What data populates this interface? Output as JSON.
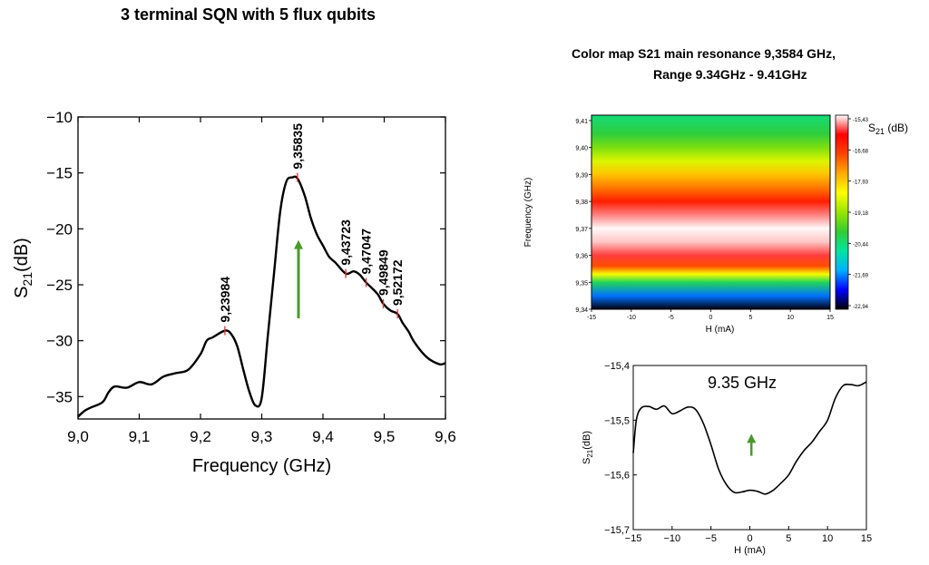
{
  "page": {
    "title": "3 terminal SQN with 5 flux qubits",
    "colormap_title_line1": "Color map S21 main resonance 9,3584 GHz,",
    "colormap_title_line2": "Range   9.34GHz - 9.41GHz"
  },
  "chart_data": [
    {
      "type": "line",
      "xlabel": "Frequency (GHz)",
      "ylabel": "S21(dB)",
      "xlim": [
        9.0,
        9.6
      ],
      "ylim": [
        -37,
        -10
      ],
      "xticks": [
        "9,0",
        "9,1",
        "9,2",
        "9,3",
        "9,4",
        "9,5",
        "9,6"
      ],
      "yticks": [
        "-10",
        "-15",
        "-20",
        "-25",
        "-30",
        "-35"
      ],
      "series": [
        {
          "color": "#000000",
          "x": [
            9.0,
            9.01,
            9.02,
            9.04,
            9.05,
            9.06,
            9.08,
            9.1,
            9.12,
            9.14,
            9.16,
            9.18,
            9.2,
            9.21,
            9.22,
            9.24,
            9.25,
            9.26,
            9.27,
            9.28,
            9.29,
            9.3,
            9.31,
            9.32,
            9.33,
            9.34,
            9.35,
            9.3584,
            9.37,
            9.38,
            9.39,
            9.4,
            9.41,
            9.42,
            9.43723,
            9.45,
            9.46,
            9.47047,
            9.48,
            9.49,
            9.49849,
            9.51,
            9.52172,
            9.53,
            9.54,
            9.55,
            9.57,
            9.59,
            9.6
          ],
          "y": [
            -36.8,
            -36.3,
            -36.0,
            -35.5,
            -34.6,
            -34.1,
            -34.2,
            -33.7,
            -33.9,
            -33.2,
            -32.9,
            -32.6,
            -31.2,
            -30.0,
            -29.7,
            -29.1,
            -29.4,
            -30.5,
            -32.6,
            -34.6,
            -35.8,
            -35.1,
            -29.5,
            -24.0,
            -18.5,
            -15.8,
            -15.4,
            -15.5,
            -17.0,
            -19.0,
            -20.5,
            -21.5,
            -22.5,
            -23.0,
            -24.0,
            -23.8,
            -24.1,
            -24.8,
            -25.3,
            -25.9,
            -26.7,
            -27.3,
            -27.6,
            -28.4,
            -29.2,
            -30.2,
            -31.5,
            -32.1,
            -32.0
          ]
        }
      ],
      "annotations": [
        {
          "label": "9,23984",
          "x": 9.23984,
          "y": -29.1
        },
        {
          "label": "9,35835",
          "x": 9.35835,
          "y": -15.4
        },
        {
          "label": "9,43723",
          "x": 9.43723,
          "y": -24.0
        },
        {
          "label": "9,47047",
          "x": 9.47047,
          "y": -24.8
        },
        {
          "label": "9,49849",
          "x": 9.49849,
          "y": -26.7
        },
        {
          "label": "9,52172",
          "x": 9.52172,
          "y": -27.6
        }
      ],
      "arrow": {
        "color": "#4a9a2a",
        "x": 9.36,
        "y_from": -28,
        "y_to": -21
      }
    },
    {
      "type": "heatmap",
      "xlabel": "H (mA)",
      "ylabel": "Frequency (GHz)",
      "xlim": [
        -15,
        15
      ],
      "ylim": [
        9.34,
        9.412
      ],
      "xticks": [
        "-15",
        "-10",
        "-5",
        "0",
        "5",
        "10",
        "15"
      ],
      "yticks": [
        "9,34",
        "9,35",
        "9,36",
        "9,37",
        "9,38",
        "9,39",
        "9,40",
        "9,41"
      ],
      "colorbar_label": "S21 (dB)",
      "colorbar_ticks": [
        "-15,43",
        "-16,68",
        "-17,93",
        "-19,18",
        "-20,44",
        "-21,69",
        "-22,94"
      ],
      "zlim": [
        -22.94,
        -15.43
      ],
      "colors": [
        "#000000",
        "#0000ff",
        "#00b0ff",
        "#00e5a0",
        "#33cc33",
        "#99e600",
        "#ffff00",
        "#ffaa00",
        "#ff4400",
        "#ff0000",
        "#ffffff"
      ],
      "y_values": [
        9.34,
        9.345,
        9.35,
        9.353,
        9.356,
        9.36,
        9.365,
        9.37,
        9.375,
        9.38,
        9.385,
        9.39,
        9.395,
        9.4,
        9.405,
        9.412
      ],
      "z_values": [
        -22.9,
        -21.7,
        -20.2,
        -18.5,
        -17.0,
        -16.0,
        -15.6,
        -15.45,
        -15.8,
        -16.5,
        -17.3,
        -17.9,
        -18.7,
        -19.4,
        -20.0,
        -20.4
      ]
    },
    {
      "type": "line",
      "xlabel": "H (mA)",
      "ylabel": "S21(dB)",
      "xlim": [
        -15,
        15
      ],
      "ylim": [
        -15.7,
        -15.4
      ],
      "xticks": [
        "-15",
        "-10",
        "-5",
        "0",
        "5",
        "10",
        "15"
      ],
      "yticks": [
        "-15,4",
        "-15,5",
        "-15,6",
        "-15,7"
      ],
      "annotation": "9.35 GHz",
      "series": [
        {
          "color": "#000000",
          "x": [
            -15,
            -14.6,
            -14,
            -13,
            -12,
            -11,
            -10,
            -9,
            -8,
            -7,
            -6,
            -5,
            -4,
            -3,
            -2,
            -1,
            0,
            1,
            2,
            3,
            4,
            5,
            6,
            7,
            8,
            9,
            10,
            11,
            12,
            13,
            14,
            15
          ],
          "y": [
            -15.56,
            -15.5,
            -15.478,
            -15.475,
            -15.48,
            -15.474,
            -15.488,
            -15.483,
            -15.476,
            -15.48,
            -15.505,
            -15.545,
            -15.59,
            -15.618,
            -15.632,
            -15.631,
            -15.628,
            -15.63,
            -15.635,
            -15.628,
            -15.615,
            -15.6,
            -15.575,
            -15.555,
            -15.54,
            -15.52,
            -15.5,
            -15.46,
            -15.437,
            -15.435,
            -15.437,
            -15.43
          ]
        }
      ],
      "arrow": {
        "color": "#4a9a2a",
        "x": 0.2,
        "y_from": -15.565,
        "y_to": -15.525
      }
    }
  ]
}
